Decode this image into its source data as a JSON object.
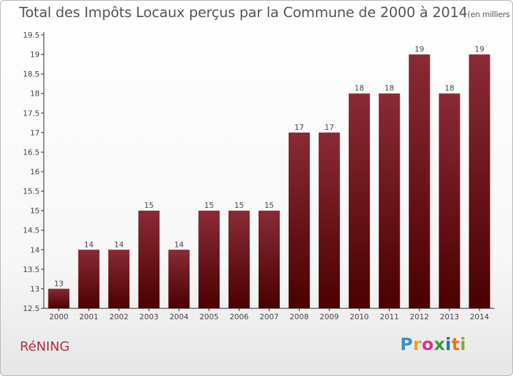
{
  "header": {
    "title": "Total des Impôts Locaux perçus par la Commune de 2000 à 2014",
    "unit": "(en milliers d'€)"
  },
  "footer": {
    "commune": "RéNING",
    "logo": [
      "P",
      "r",
      "o",
      "x",
      "i",
      "t",
      "i"
    ]
  },
  "colors": {
    "bar_top": "#8a2a36",
    "bar_bottom": "#4a0000",
    "axis": "#222222"
  },
  "chart_data": {
    "type": "bar",
    "title": "Total des Impôts Locaux perçus par la Commune de 2000 à 2014",
    "xlabel": "",
    "ylabel": "",
    "categories": [
      "2000",
      "2001",
      "2002",
      "2003",
      "2004",
      "2005",
      "2006",
      "2007",
      "2008",
      "2009",
      "2010",
      "2011",
      "2012",
      "2013",
      "2014"
    ],
    "values": [
      13,
      14,
      14,
      15,
      14,
      15,
      15,
      15,
      17,
      17,
      18,
      18,
      19,
      18,
      19
    ],
    "data_labels": [
      "13",
      "14",
      "14",
      "15",
      "14",
      "15",
      "15",
      "15",
      "17",
      "17",
      "18",
      "18",
      "19",
      "18",
      "19"
    ],
    "ylim": [
      12.5,
      19.5
    ],
    "yticks": [
      "12.5",
      "13",
      "13.5",
      "14",
      "14.5",
      "15",
      "15.5",
      "16",
      "16.5",
      "17",
      "17.5",
      "18",
      "18.5",
      "19",
      "19.5"
    ],
    "grid": false,
    "legend": "none"
  }
}
